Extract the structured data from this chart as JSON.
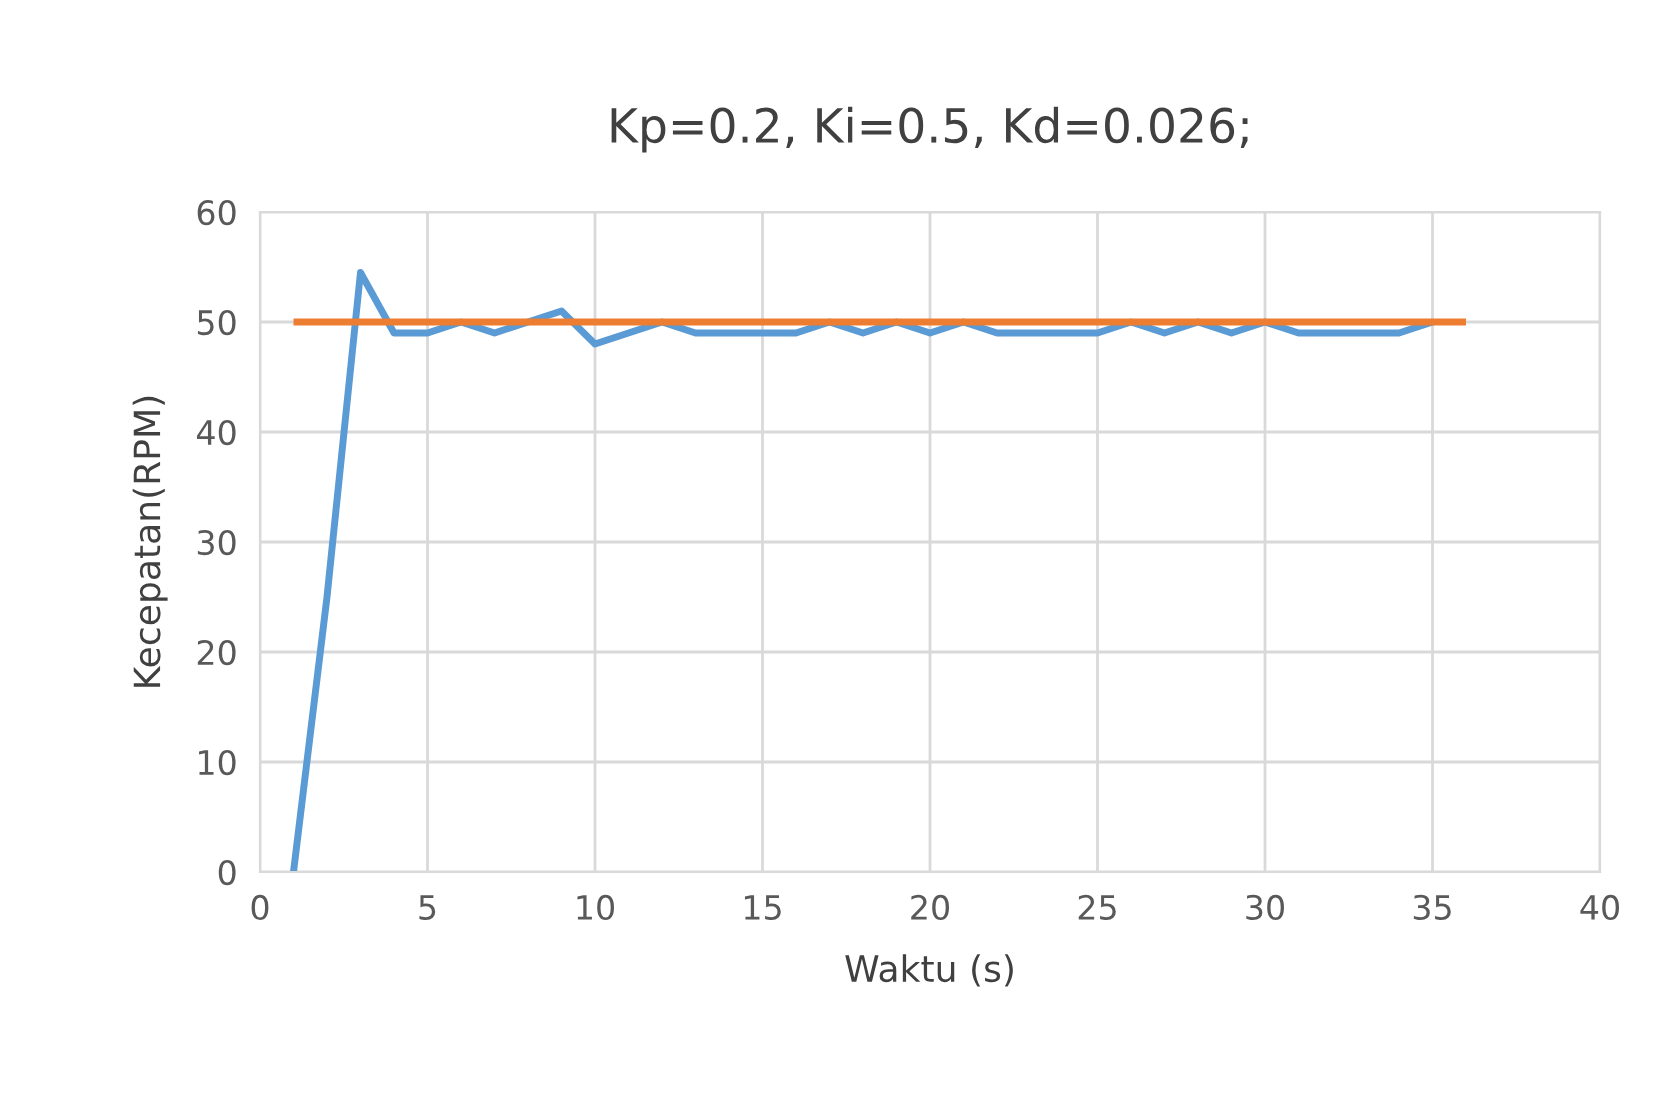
{
  "chart_data": {
    "type": "line",
    "title": "Kp=0.2, Ki=0.5, Kd=0.026;",
    "xlabel": "Waktu (s)",
    "ylabel": "Kecepatan(RPM)",
    "series": [
      {
        "color": "#5b9bd5",
        "x": [
          1,
          2,
          3,
          4,
          5,
          6,
          7,
          8,
          9,
          10,
          11,
          12,
          13,
          14,
          15,
          16,
          17,
          18,
          19,
          20,
          21,
          22,
          23,
          24,
          25,
          26,
          27,
          28,
          29,
          30,
          31,
          32,
          33,
          34,
          35
        ],
        "values": [
          0,
          25,
          54.5,
          49,
          49,
          50,
          49,
          50,
          51,
          48,
          49,
          50,
          49,
          49,
          49,
          49,
          50,
          49,
          50,
          49,
          50,
          49,
          49,
          49,
          49,
          50,
          49,
          50,
          49,
          50,
          49,
          49,
          49,
          49,
          50
        ]
      },
      {
        "color": "#ed7d31",
        "x": [
          1,
          36
        ],
        "values": [
          50,
          50
        ]
      }
    ],
    "xlim": [
      0,
      40
    ],
    "xticks": [
      0,
      5,
      10,
      15,
      20,
      25,
      30,
      35,
      40
    ],
    "ylim": [
      0,
      60
    ],
    "yticks": [
      0,
      10,
      20,
      30,
      40,
      50,
      60
    ],
    "grid": true,
    "legend": false,
    "marker": "none",
    "line_style": "solid"
  }
}
